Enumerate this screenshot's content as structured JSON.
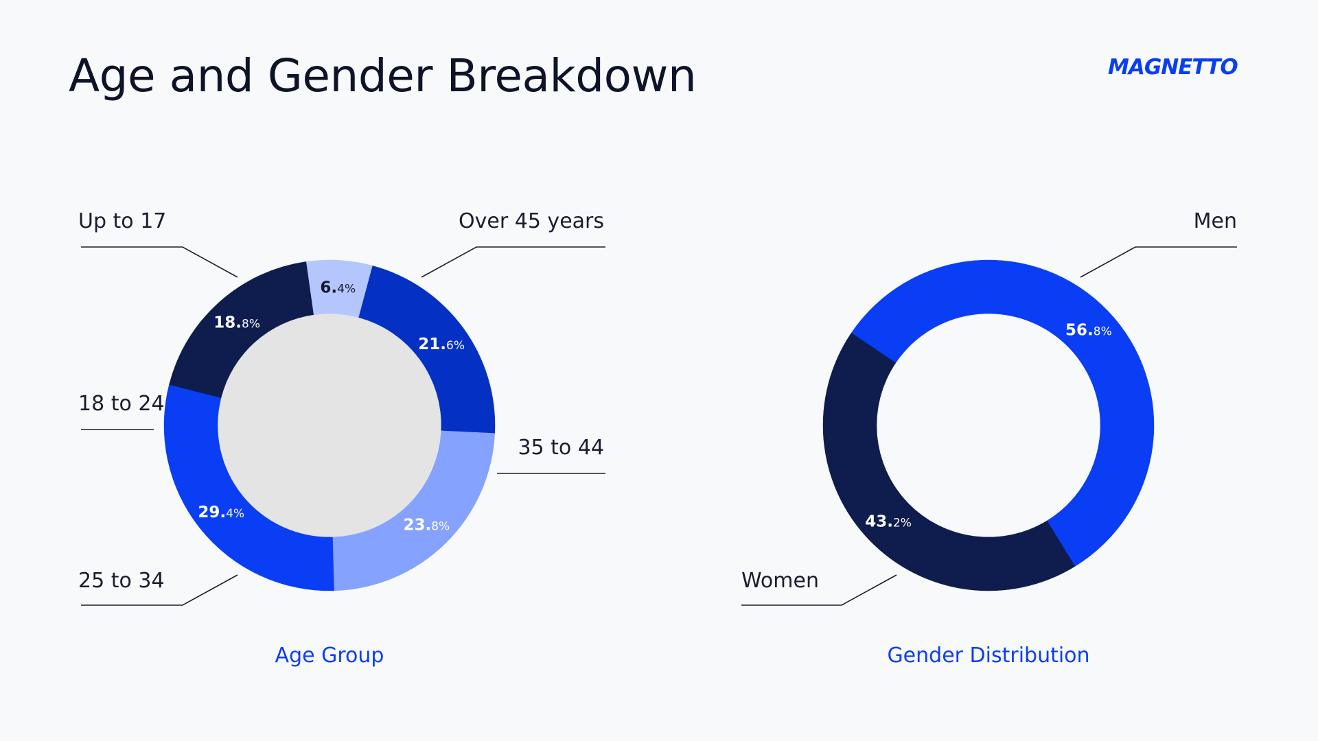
{
  "title": "Age and Gender Breakdown",
  "brand": "MAGNETTO",
  "colors": {
    "brand_blue": "#0a3ef5",
    "navy": "#0e1d4e",
    "dark_blue": "#0431c4",
    "light_blue": "#85a2ff",
    "pale_blue": "#b4c6fd",
    "center_fill": "#e4e4e4",
    "background": "#f8f9fa"
  },
  "chart_data": [
    {
      "type": "pie",
      "title": "Age Group",
      "categories": [
        "Over 45 years",
        "35 to 44",
        "25 to 34",
        "18 to 24",
        "Up to 17"
      ],
      "values": [
        21.6,
        23.8,
        29.4,
        18.8,
        6.4
      ],
      "colors": [
        "#0431c4",
        "#85a2ff",
        "#0a3ef5",
        "#0e1d4e",
        "#b4c6fd"
      ],
      "label_colors": [
        "#ffffff",
        "#ffffff",
        "#ffffff",
        "#ffffff",
        "#14182b"
      ],
      "start_angle": 15,
      "donut": true
    },
    {
      "type": "pie",
      "title": "Gender Distribution",
      "categories": [
        "Men",
        "Women"
      ],
      "values": [
        56.8,
        43.2
      ],
      "colors": [
        "#0a3ef5",
        "#0e1d4e"
      ],
      "label_colors": [
        "#ffffff",
        "#ffffff"
      ],
      "start_angle": -56,
      "donut": true
    }
  ]
}
